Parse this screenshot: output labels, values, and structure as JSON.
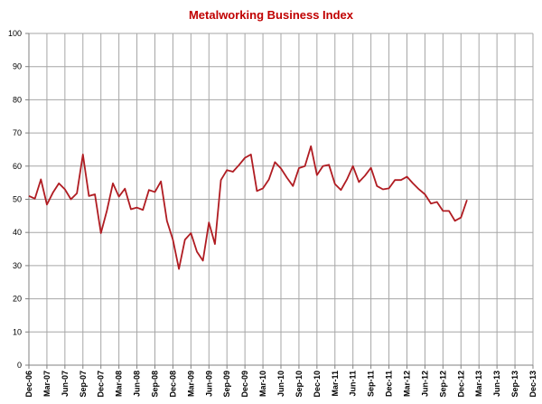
{
  "chart_data": {
    "type": "line",
    "title": "Metalworking Business Index",
    "title_color": "#c00000",
    "line_color": "#b01c22",
    "grid_color": "#a6a6a6",
    "grid": true,
    "xlabel": "",
    "ylabel": "",
    "ylim": [
      0,
      100
    ],
    "y_ticks": [
      0,
      10,
      20,
      30,
      40,
      50,
      60,
      70,
      80,
      90,
      100
    ],
    "x_tick_labels": [
      "Dec-06",
      "Mar-07",
      "Jun-07",
      "Sep-07",
      "Dec-07",
      "Mar-08",
      "Jun-08",
      "Sep-08",
      "Dec-08",
      "Mar-09",
      "Jun-09",
      "Sep-09",
      "Dec-09",
      "Mar-10",
      "Jun-10",
      "Sep-10",
      "Dec-10",
      "Mar-11",
      "Jun-11",
      "Sep-11",
      "Dec-11",
      "Mar-12",
      "Jun-12",
      "Sep-12",
      "Dec-12",
      "Mar-13",
      "Jun-13",
      "Sep-13",
      "Dec-13"
    ],
    "series": [
      {
        "values": [
          51.0,
          50.2,
          56.0,
          48.4,
          52.0,
          54.8,
          53.0,
          50.0,
          51.8,
          63.5,
          51.0,
          51.5,
          39.8,
          46.6,
          54.8,
          50.8,
          53.2,
          47.0,
          47.5,
          46.8,
          52.8,
          52.2,
          55.4,
          43.5,
          37.8,
          29.0,
          37.8,
          39.8,
          34.2,
          31.5,
          43.0,
          36.5,
          55.8,
          58.8,
          58.3,
          60.3,
          62.5,
          63.5,
          52.5,
          53.3,
          56.0,
          61.2,
          59.3,
          56.5,
          54.0,
          59.4,
          60.0,
          66.0,
          57.3,
          60.0,
          60.4,
          54.6,
          52.8,
          56.0,
          60.0,
          55.2,
          57.1,
          59.5,
          54.0,
          53.0,
          53.3,
          55.8,
          55.8,
          56.8,
          54.8,
          53.0,
          51.5,
          48.7,
          49.2,
          46.5,
          46.5,
          43.5,
          44.5,
          49.8
        ]
      }
    ]
  }
}
